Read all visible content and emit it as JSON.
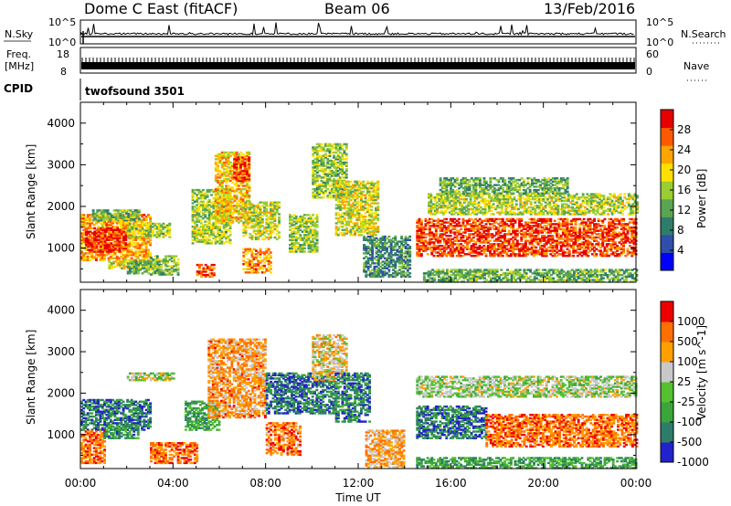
{
  "header": {
    "title": "Dome C East (fitACF)",
    "beam": "Beam 06",
    "date": "13/Feb/2016"
  },
  "strip": {
    "nsky_label": "N.Sky",
    "nsearch_label": "N.Search",
    "nsky_ticks": [
      "10^5",
      "10^0"
    ],
    "nsearch_ticks": [
      "10^5",
      "10^0"
    ],
    "freq_label_1": "Freq.",
    "freq_label_2": "[MHz]",
    "freq_ticks": [
      "18",
      "8"
    ],
    "nave_label": "Nave",
    "nave_ticks": [
      "60",
      "0"
    ],
    "cpid_label": "CPID",
    "cpid_value": "twofsound 3501"
  },
  "colors": {
    "power": [
      "#0000ff",
      "#2f4fa8",
      "#2e7d6a",
      "#5aa552",
      "#9acd32",
      "#ffe000",
      "#ffa500",
      "#ff5a00",
      "#e60000"
    ],
    "velocity": [
      "#2222cc",
      "#2e7d6a",
      "#3ba53b",
      "#55c030",
      "#c8c8c8",
      "#ffa000",
      "#ff7000",
      "#ee0000"
    ]
  },
  "chart_data": [
    {
      "type": "heatmap",
      "name": "power",
      "xlabel": "",
      "ylabel": "Slant Range [km]",
      "xticks": [
        "00:00",
        "04:00",
        "08:00",
        "12:00",
        "16:00",
        "20:00",
        "00:00"
      ],
      "yticks": [
        1000,
        2000,
        3000,
        4000
      ],
      "xlim": [
        0,
        24
      ],
      "ylim": [
        180,
        4500
      ],
      "colorbar_label": "Power [dB]",
      "colorbar_ticks": [
        4,
        8,
        12,
        16,
        20,
        24,
        28
      ],
      "colorbar_range": [
        0,
        32
      ],
      "regions": [
        {
          "t0": 0.0,
          "t1": 3.0,
          "r0": 700,
          "r1": 1800,
          "level": 0.72
        },
        {
          "t0": 0.2,
          "t1": 2.0,
          "r0": 900,
          "r1": 1500,
          "level": 0.92
        },
        {
          "t0": 2.0,
          "t1": 3.8,
          "r0": 1250,
          "r1": 1600,
          "level": 0.5
        },
        {
          "t0": 0.5,
          "t1": 2.5,
          "r0": 1650,
          "r1": 1900,
          "level": 0.42
        },
        {
          "t0": 1.2,
          "t1": 3.0,
          "r0": 500,
          "r1": 700,
          "level": 0.58
        },
        {
          "t0": 2.0,
          "t1": 3.5,
          "r0": 380,
          "r1": 700,
          "level": 0.4
        },
        {
          "t0": 3.0,
          "t1": 4.2,
          "r0": 350,
          "r1": 800,
          "level": 0.45
        },
        {
          "t0": 4.8,
          "t1": 6.5,
          "r0": 1100,
          "r1": 2400,
          "level": 0.5
        },
        {
          "t0": 5.0,
          "t1": 5.8,
          "r0": 300,
          "r1": 600,
          "level": 0.88
        },
        {
          "t0": 5.8,
          "t1": 7.3,
          "r0": 1600,
          "r1": 3300,
          "level": 0.66
        },
        {
          "t0": 6.6,
          "t1": 7.3,
          "r0": 2600,
          "r1": 3200,
          "level": 0.86
        },
        {
          "t0": 7.0,
          "t1": 8.6,
          "r0": 1200,
          "r1": 2100,
          "level": 0.55
        },
        {
          "t0": 7.0,
          "t1": 8.2,
          "r0": 400,
          "r1": 1000,
          "level": 0.75
        },
        {
          "t0": 9.0,
          "t1": 10.2,
          "r0": 900,
          "r1": 1800,
          "level": 0.48
        },
        {
          "t0": 10.0,
          "t1": 11.5,
          "r0": 2200,
          "r1": 3500,
          "level": 0.46
        },
        {
          "t0": 11.0,
          "t1": 12.8,
          "r0": 1300,
          "r1": 2600,
          "level": 0.56
        },
        {
          "t0": 12.2,
          "t1": 14.2,
          "r0": 300,
          "r1": 1300,
          "level": 0.32
        },
        {
          "t0": 14.5,
          "t1": 24.0,
          "r0": 800,
          "r1": 1700,
          "level": 0.88
        },
        {
          "t0": 15.0,
          "t1": 24.0,
          "r0": 1800,
          "r1": 2300,
          "level": 0.52
        },
        {
          "t0": 15.5,
          "t1": 21.0,
          "r0": 2300,
          "r1": 2700,
          "level": 0.4
        },
        {
          "t0": 14.8,
          "t1": 24.0,
          "r0": 180,
          "r1": 500,
          "level": 0.4
        }
      ]
    },
    {
      "type": "heatmap",
      "name": "velocity",
      "xlabel": "Time UT",
      "ylabel": "Slant Range [km]",
      "xticks": [
        "00:00",
        "04:00",
        "08:00",
        "12:00",
        "16:00",
        "20:00",
        "00:00"
      ],
      "yticks": [
        1000,
        2000,
        3000,
        4000
      ],
      "xlim": [
        0,
        24
      ],
      "ylim": [
        180,
        4500
      ],
      "colorbar_label": "Velocity [m s^-1]",
      "colorbar_ticks": [
        1000,
        500,
        100,
        25,
        -25,
        -100,
        -500,
        -1000
      ],
      "regions": [
        {
          "t0": 0.0,
          "t1": 3.0,
          "r0": 1100,
          "r1": 1850,
          "level": 0.18
        },
        {
          "t0": 0.0,
          "t1": 1.0,
          "r0": 300,
          "r1": 1100,
          "level": 0.8
        },
        {
          "t0": 1.0,
          "t1": 2.5,
          "r0": 900,
          "r1": 1300,
          "level": 0.28
        },
        {
          "t0": 2.0,
          "t1": 4.0,
          "r0": 2300,
          "r1": 2500,
          "level": 0.5
        },
        {
          "t0": 3.0,
          "t1": 5.0,
          "r0": 300,
          "r1": 800,
          "level": 0.82
        },
        {
          "t0": 4.5,
          "t1": 6.0,
          "r0": 1100,
          "r1": 1800,
          "level": 0.3
        },
        {
          "t0": 5.5,
          "t1": 8.0,
          "r0": 1400,
          "r1": 3300,
          "level": 0.72
        },
        {
          "t0": 8.0,
          "t1": 9.5,
          "r0": 500,
          "r1": 1300,
          "level": 0.78
        },
        {
          "t0": 8.0,
          "t1": 11.0,
          "r0": 1500,
          "r1": 2500,
          "level": 0.18
        },
        {
          "t0": 10.0,
          "t1": 11.5,
          "r0": 2300,
          "r1": 3400,
          "level": 0.62
        },
        {
          "t0": 11.0,
          "t1": 12.5,
          "r0": 1300,
          "r1": 2500,
          "level": 0.22
        },
        {
          "t0": 12.3,
          "t1": 14.0,
          "r0": 200,
          "r1": 1100,
          "level": 0.7
        },
        {
          "t0": 14.5,
          "t1": 17.5,
          "r0": 900,
          "r1": 1700,
          "level": 0.18
        },
        {
          "t0": 17.5,
          "t1": 24.0,
          "r0": 700,
          "r1": 1500,
          "level": 0.8
        },
        {
          "t0": 14.5,
          "t1": 24.0,
          "r0": 1900,
          "r1": 2400,
          "level": 0.5
        },
        {
          "t0": 14.5,
          "t1": 24.0,
          "r0": 180,
          "r1": 450,
          "level": 0.32
        }
      ]
    }
  ]
}
